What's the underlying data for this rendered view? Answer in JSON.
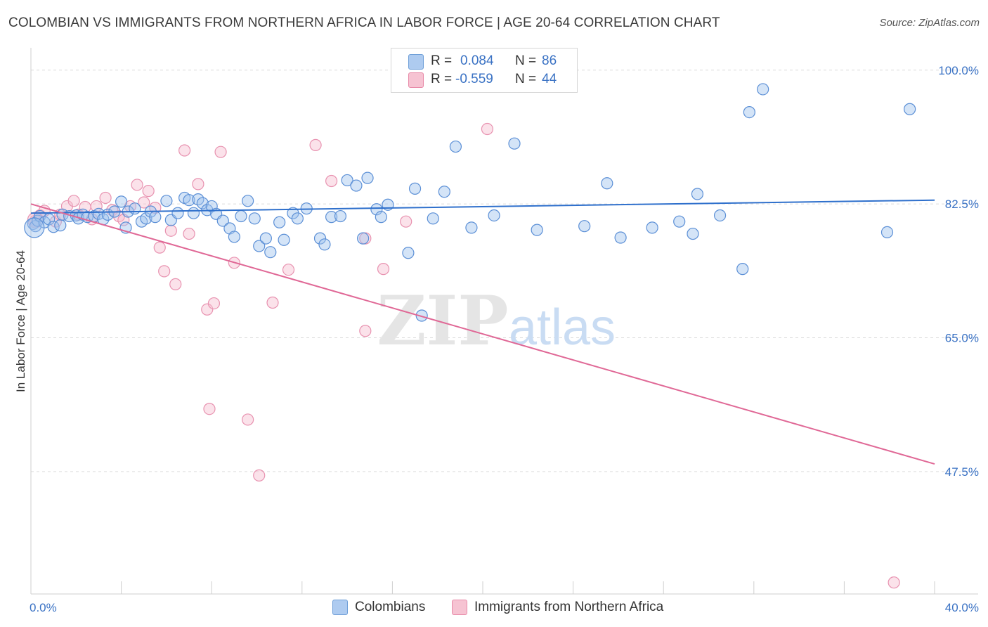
{
  "title": "COLOMBIAN VS IMMIGRANTS FROM NORTHERN AFRICA IN LABOR FORCE | AGE 20-64 CORRELATION CHART",
  "source": "Source: ZipAtlas.com",
  "watermark": {
    "zip": "ZIP",
    "atlas": "atlas"
  },
  "legend_top": {
    "rows": [
      {
        "r_label": "R =",
        "r_value": "0.084",
        "n_label": "N =",
        "n_value": "86",
        "color": "#aecbf0",
        "border": "#6f9fd8"
      },
      {
        "r_label": "R =",
        "r_value": "-0.559",
        "n_label": "N =",
        "n_value": "44",
        "color": "#f6c3d2",
        "border": "#e88aa8"
      }
    ]
  },
  "legend_bottom": [
    {
      "label": "Colombians",
      "color": "#aecbf0",
      "border": "#6f9fd8"
    },
    {
      "label": "Immigrants from Northern Africa",
      "color": "#f6c3d2",
      "border": "#e88aa8"
    }
  ],
  "colors": {
    "blue": "#2f70cc",
    "pink": "#e06896",
    "blue_fill": "rgba(160,195,238,0.45)",
    "blue_stroke": "#5b8fd6",
    "pink_fill": "rgba(246,190,208,0.45)",
    "pink_stroke": "#e892b0",
    "tick_label": "#3a72c4",
    "grid": "#dcdcdc"
  },
  "chart_data": {
    "type": "scatter",
    "title": "COLOMBIAN VS IMMIGRANTS FROM NORTHERN AFRICA IN LABOR FORCE | AGE 20-64 CORRELATION CHART",
    "xlabel": "",
    "ylabel": "In Labor Force | Age 20-64",
    "xlim": [
      0,
      40
    ],
    "ylim": [
      31.5,
      102
    ],
    "x_tick_labels": [
      "0.0%",
      "40.0%"
    ],
    "x_ticks": [
      0,
      40
    ],
    "y_ticks": [
      47.5,
      65.0,
      82.5,
      100.0
    ],
    "y_tick_labels": [
      "47.5%",
      "65.0%",
      "82.5%",
      "100.0%"
    ],
    "grid": true,
    "series": [
      {
        "name": "Colombians",
        "trend": {
          "x": [
            0,
            40
          ],
          "y": [
            81.3,
            83.0
          ]
        },
        "points": [
          [
            0.1,
            79.9
          ],
          [
            0.2,
            79.6
          ],
          [
            0.3,
            80.3
          ],
          [
            0.4,
            80.9
          ],
          [
            0.6,
            80.1
          ],
          [
            0.8,
            80.5
          ],
          [
            1.0,
            79.5
          ],
          [
            1.3,
            79.7
          ],
          [
            1.4,
            81.1
          ],
          [
            1.7,
            80.9
          ],
          [
            2.0,
            81.0
          ],
          [
            2.1,
            80.6
          ],
          [
            2.3,
            81.1
          ],
          [
            2.5,
            80.8
          ],
          [
            2.8,
            80.9
          ],
          [
            3.0,
            81.2
          ],
          [
            3.2,
            80.5
          ],
          [
            3.4,
            81.1
          ],
          [
            3.7,
            81.5
          ],
          [
            4.0,
            82.8
          ],
          [
            4.2,
            79.4
          ],
          [
            4.3,
            81.5
          ],
          [
            4.6,
            81.9
          ],
          [
            4.9,
            80.2
          ],
          [
            5.1,
            80.6
          ],
          [
            5.3,
            81.5
          ],
          [
            5.5,
            80.8
          ],
          [
            6.0,
            82.9
          ],
          [
            6.2,
            80.4
          ],
          [
            6.5,
            81.3
          ],
          [
            6.8,
            83.3
          ],
          [
            7.0,
            83.0
          ],
          [
            7.2,
            81.3
          ],
          [
            7.4,
            83.1
          ],
          [
            7.6,
            82.6
          ],
          [
            7.8,
            81.7
          ],
          [
            8.0,
            82.2
          ],
          [
            8.2,
            81.2
          ],
          [
            8.5,
            80.3
          ],
          [
            8.8,
            79.3
          ],
          [
            9.0,
            78.2
          ],
          [
            9.3,
            80.9
          ],
          [
            9.6,
            82.9
          ],
          [
            9.9,
            80.6
          ],
          [
            10.1,
            77.0
          ],
          [
            10.4,
            78.0
          ],
          [
            10.6,
            76.2
          ],
          [
            11.0,
            80.1
          ],
          [
            11.2,
            77.8
          ],
          [
            11.6,
            81.3
          ],
          [
            11.8,
            80.6
          ],
          [
            12.2,
            81.9
          ],
          [
            12.8,
            78.0
          ],
          [
            13.0,
            77.2
          ],
          [
            13.3,
            80.8
          ],
          [
            13.7,
            80.9
          ],
          [
            14.0,
            85.6
          ],
          [
            14.4,
            84.9
          ],
          [
            14.7,
            78.0
          ],
          [
            14.9,
            85.9
          ],
          [
            15.3,
            81.8
          ],
          [
            15.5,
            80.8
          ],
          [
            15.8,
            82.4
          ],
          [
            16.7,
            76.1
          ],
          [
            17.0,
            84.5
          ],
          [
            17.3,
            67.9
          ],
          [
            17.8,
            80.6
          ],
          [
            18.3,
            84.1
          ],
          [
            18.8,
            90.0
          ],
          [
            19.5,
            79.4
          ],
          [
            20.5,
            81.0
          ],
          [
            21.4,
            90.4
          ],
          [
            22.4,
            79.1
          ],
          [
            24.5,
            79.6
          ],
          [
            25.5,
            85.2
          ],
          [
            26.1,
            78.1
          ],
          [
            27.5,
            79.4
          ],
          [
            28.7,
            80.2
          ],
          [
            29.3,
            78.6
          ],
          [
            29.5,
            83.8
          ],
          [
            30.5,
            81.0
          ],
          [
            31.5,
            74.0
          ],
          [
            31.8,
            94.5
          ],
          [
            32.4,
            97.5
          ],
          [
            37.9,
            78.8
          ],
          [
            38.9,
            94.9
          ]
        ]
      },
      {
        "name": "Immigrants from Northern Africa",
        "trend": {
          "x": [
            0,
            40
          ],
          "y": [
            82.5,
            48.5
          ]
        },
        "points": [
          [
            0.2,
            80.3
          ],
          [
            0.4,
            81.0
          ],
          [
            0.6,
            81.6
          ],
          [
            1.1,
            80.2
          ],
          [
            1.3,
            81.1
          ],
          [
            1.6,
            82.2
          ],
          [
            1.9,
            82.9
          ],
          [
            2.1,
            81.1
          ],
          [
            2.4,
            82.1
          ],
          [
            2.7,
            80.5
          ],
          [
            2.9,
            82.2
          ],
          [
            3.3,
            83.3
          ],
          [
            3.6,
            81.7
          ],
          [
            3.9,
            80.9
          ],
          [
            4.1,
            80.4
          ],
          [
            4.4,
            82.2
          ],
          [
            4.7,
            85.0
          ],
          [
            5.0,
            82.7
          ],
          [
            5.2,
            84.2
          ],
          [
            5.5,
            82.0
          ],
          [
            5.7,
            76.8
          ],
          [
            5.9,
            73.7
          ],
          [
            6.2,
            79.0
          ],
          [
            6.4,
            72.0
          ],
          [
            6.8,
            89.5
          ],
          [
            7.0,
            78.6
          ],
          [
            7.4,
            85.1
          ],
          [
            7.8,
            68.7
          ],
          [
            7.9,
            55.7
          ],
          [
            8.1,
            69.5
          ],
          [
            8.4,
            89.3
          ],
          [
            9.0,
            74.8
          ],
          [
            9.6,
            54.3
          ],
          [
            10.1,
            47.0
          ],
          [
            10.7,
            69.6
          ],
          [
            11.4,
            73.9
          ],
          [
            12.6,
            90.2
          ],
          [
            13.3,
            85.5
          ],
          [
            14.8,
            78.0
          ],
          [
            14.8,
            65.9
          ],
          [
            15.6,
            74.0
          ],
          [
            16.6,
            80.2
          ],
          [
            20.2,
            92.3
          ],
          [
            38.2,
            33.0
          ]
        ]
      }
    ]
  }
}
